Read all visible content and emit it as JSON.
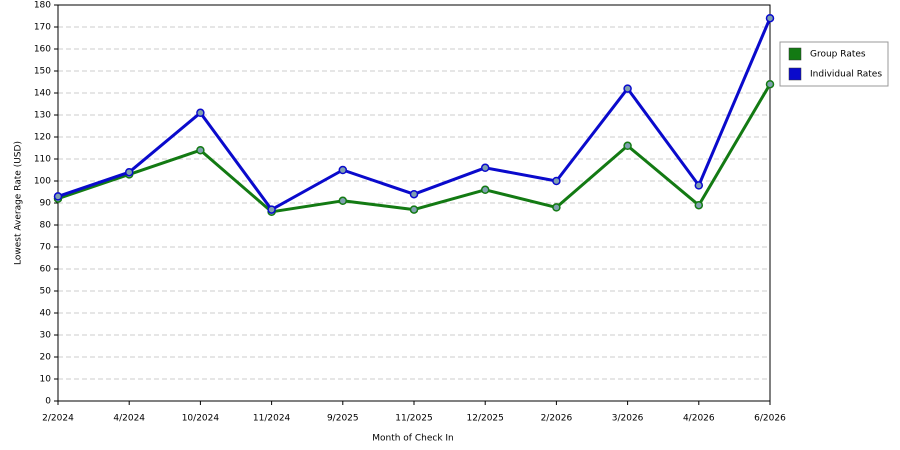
{
  "chart_data": {
    "type": "line",
    "x_label": "Month of Check In",
    "y_label": "Lowest Average Rate (USD)",
    "categories": [
      "2/2024",
      "4/2024",
      "10/2024",
      "11/2024",
      "9/2025",
      "11/2025",
      "12/2025",
      "2/2026",
      "3/2026",
      "4/2026",
      "6/2026"
    ],
    "series": [
      {
        "name": "Group Rates",
        "color": "#137a13",
        "values": [
          92,
          103,
          114,
          86,
          91,
          87,
          96,
          88,
          116,
          89,
          144
        ]
      },
      {
        "name": "Individual Rates",
        "color": "#0a0acc",
        "values": [
          93,
          104,
          131,
          87,
          105,
          94,
          106,
          100,
          142,
          98,
          174
        ]
      }
    ],
    "ylim": [
      0,
      180
    ],
    "yticks": [
      0,
      10,
      20,
      30,
      40,
      50,
      60,
      70,
      80,
      90,
      100,
      110,
      120,
      130,
      140,
      150,
      160,
      170,
      180
    ],
    "grid": true,
    "legend": "right"
  }
}
